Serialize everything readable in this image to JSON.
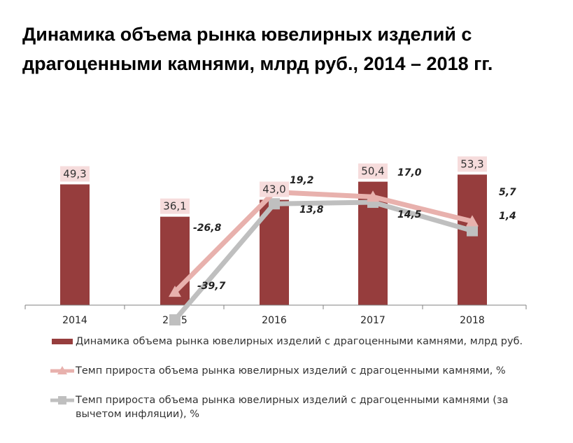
{
  "title": "Динамика объема рынка ювелирных изделий с драгоценными камнями, млрд руб., 2014 – 2018 гг.",
  "colors": {
    "bar": "#963d3d",
    "bar_label_bg": "#f6dcdc",
    "nominal_line": "#e8b1ad",
    "real_line": "#bfbfbf",
    "axis": "#808080"
  },
  "chart_data": {
    "type": "bar",
    "categories": [
      "2014",
      "2015",
      "2016",
      "2017",
      "2018"
    ],
    "series": [
      {
        "name": "Динамика объема рынка ювелирных изделий с драгоценными камнями, млрд руб.",
        "type": "bar",
        "values": [
          49.3,
          36.1,
          43.0,
          50.4,
          53.3
        ],
        "labels": [
          "49,3",
          "36,1",
          "43,0",
          "50,4",
          "53,3"
        ]
      },
      {
        "name": "Темп прироста объема рынка ювелирных изделий с драгоценными камнями, %",
        "type": "line",
        "marker": "triangle",
        "values": [
          null,
          -26.8,
          19.2,
          17.0,
          5.7
        ],
        "labels": [
          "",
          "-26,8",
          "19,2",
          "17,0",
          "5,7"
        ]
      },
      {
        "name": "Темп прироста объема рынка ювелирных изделий с драгоценными камнями (за вычетом инфляции), %",
        "type": "line",
        "marker": "square",
        "values": [
          null,
          -39.7,
          13.8,
          14.5,
          1.4
        ],
        "labels": [
          "",
          "-39,7",
          "13,8",
          "14,5",
          "1,4"
        ]
      }
    ],
    "legend_position": "bottom",
    "grid": false
  }
}
